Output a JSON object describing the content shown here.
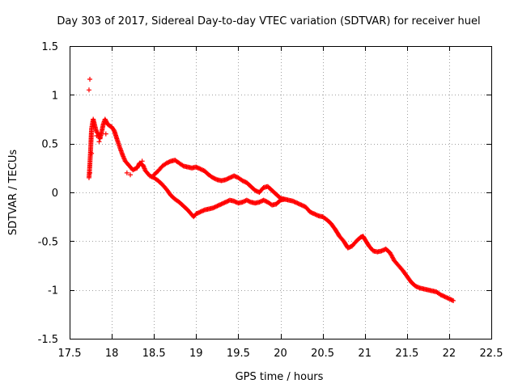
{
  "chart_data": {
    "type": "scatter",
    "title": "Day 303 of 2017, Sidereal Day-to-day VTEC variation (SDTVAR) for receiver huel",
    "xlabel": "GPS time / hours",
    "ylabel": "SDTVAR / TECUs",
    "xlim": [
      17.5,
      22.5
    ],
    "ylim": [
      -1.5,
      1.5
    ],
    "xticks": [
      17.5,
      18,
      18.5,
      19,
      19.5,
      20,
      20.5,
      21,
      21.5,
      22,
      22.5
    ],
    "xtick_labels": [
      "17.5",
      "18",
      "18.5",
      "19",
      "19.5",
      "20",
      "20.5",
      "21",
      "21.5",
      "22",
      "22.5"
    ],
    "yticks": [
      -1.5,
      -1,
      -0.5,
      0,
      0.5,
      1,
      1.5
    ],
    "ytick_labels": [
      "-1.5",
      "-1",
      "-0.5",
      "0",
      "0.5",
      "1",
      "1.5"
    ],
    "grid": true,
    "marker": "+",
    "color": "#ff0000",
    "series": [
      {
        "name": "SDTVAR",
        "polylines": [
          [
            [
              17.73,
              0.15
            ],
            [
              17.74,
              0.28
            ],
            [
              17.75,
              0.45
            ],
            [
              17.76,
              0.65
            ],
            [
              17.78,
              0.75
            ],
            [
              17.8,
              0.68
            ],
            [
              17.82,
              0.62
            ],
            [
              17.84,
              0.6
            ],
            [
              17.86,
              0.55
            ],
            [
              17.88,
              0.62
            ],
            [
              17.9,
              0.7
            ],
            [
              17.92,
              0.75
            ],
            [
              17.95,
              0.7
            ],
            [
              17.98,
              0.68
            ],
            [
              18.0,
              0.67
            ],
            [
              18.03,
              0.63
            ],
            [
              18.06,
              0.55
            ],
            [
              18.1,
              0.45
            ],
            [
              18.13,
              0.38
            ],
            [
              18.16,
              0.32
            ],
            [
              18.2,
              0.28
            ],
            [
              18.25,
              0.23
            ],
            [
              18.3,
              0.25
            ],
            [
              18.33,
              0.3
            ],
            [
              18.37,
              0.28
            ],
            [
              18.4,
              0.22
            ],
            [
              18.45,
              0.17
            ],
            [
              18.5,
              0.15
            ],
            [
              18.55,
              0.12
            ],
            [
              18.6,
              0.08
            ],
            [
              18.65,
              0.03
            ],
            [
              18.7,
              -0.03
            ],
            [
              18.75,
              -0.07
            ],
            [
              18.8,
              -0.1
            ],
            [
              18.85,
              -0.14
            ],
            [
              18.9,
              -0.18
            ],
            [
              18.95,
              -0.23
            ],
            [
              18.97,
              -0.25
            ],
            [
              19.0,
              -0.22
            ],
            [
              19.05,
              -0.2
            ],
            [
              19.1,
              -0.18
            ],
            [
              19.15,
              -0.17
            ],
            [
              19.2,
              -0.16
            ],
            [
              19.25,
              -0.14
            ],
            [
              19.3,
              -0.12
            ],
            [
              19.35,
              -0.1
            ],
            [
              19.4,
              -0.08
            ],
            [
              19.45,
              -0.09
            ],
            [
              19.5,
              -0.11
            ],
            [
              19.55,
              -0.1
            ],
            [
              19.6,
              -0.08
            ],
            [
              19.65,
              -0.1
            ],
            [
              19.7,
              -0.11
            ],
            [
              19.75,
              -0.1
            ],
            [
              19.8,
              -0.08
            ],
            [
              19.85,
              -0.1
            ],
            [
              19.9,
              -0.13
            ],
            [
              19.95,
              -0.12
            ],
            [
              20.0,
              -0.08
            ],
            [
              20.05,
              -0.07
            ],
            [
              20.1,
              -0.08
            ],
            [
              20.15,
              -0.09
            ],
            [
              20.2,
              -0.11
            ],
            [
              20.25,
              -0.13
            ],
            [
              20.3,
              -0.15
            ],
            [
              20.35,
              -0.2
            ],
            [
              20.4,
              -0.22
            ],
            [
              20.45,
              -0.24
            ],
            [
              20.5,
              -0.25
            ],
            [
              20.55,
              -0.28
            ],
            [
              20.6,
              -0.32
            ],
            [
              20.65,
              -0.38
            ],
            [
              20.7,
              -0.45
            ],
            [
              20.75,
              -0.5
            ],
            [
              20.8,
              -0.57
            ],
            [
              20.85,
              -0.55
            ],
            [
              20.9,
              -0.5
            ],
            [
              20.95,
              -0.46
            ],
            [
              20.98,
              -0.45
            ],
            [
              21.0,
              -0.48
            ],
            [
              21.05,
              -0.55
            ],
            [
              21.1,
              -0.6
            ],
            [
              21.15,
              -0.61
            ],
            [
              21.2,
              -0.6
            ],
            [
              21.25,
              -0.58
            ],
            [
              21.3,
              -0.62
            ],
            [
              21.35,
              -0.7
            ],
            [
              21.4,
              -0.75
            ],
            [
              21.45,
              -0.8
            ],
            [
              21.5,
              -0.86
            ],
            [
              21.55,
              -0.92
            ],
            [
              21.6,
              -0.96
            ],
            [
              21.65,
              -0.98
            ],
            [
              21.7,
              -0.99
            ],
            [
              21.75,
              -1.0
            ],
            [
              21.8,
              -1.01
            ],
            [
              21.85,
              -1.02
            ],
            [
              21.9,
              -1.05
            ],
            [
              21.95,
              -1.07
            ],
            [
              22.0,
              -1.09
            ],
            [
              22.05,
              -1.11
            ]
          ],
          [
            [
              18.5,
              0.18
            ],
            [
              18.55,
              0.22
            ],
            [
              18.6,
              0.27
            ],
            [
              18.65,
              0.3
            ],
            [
              18.7,
              0.32
            ],
            [
              18.75,
              0.33
            ],
            [
              18.8,
              0.3
            ],
            [
              18.85,
              0.27
            ],
            [
              18.9,
              0.26
            ],
            [
              18.95,
              0.25
            ],
            [
              19.0,
              0.26
            ],
            [
              19.05,
              0.24
            ],
            [
              19.1,
              0.22
            ],
            [
              19.15,
              0.18
            ],
            [
              19.2,
              0.15
            ],
            [
              19.25,
              0.13
            ],
            [
              19.3,
              0.12
            ],
            [
              19.35,
              0.13
            ],
            [
              19.4,
              0.15
            ],
            [
              19.45,
              0.17
            ],
            [
              19.5,
              0.15
            ],
            [
              19.55,
              0.12
            ],
            [
              19.6,
              0.1
            ],
            [
              19.65,
              0.06
            ],
            [
              19.7,
              0.02
            ],
            [
              19.75,
              0.0
            ],
            [
              19.8,
              0.05
            ],
            [
              19.85,
              0.06
            ],
            [
              19.9,
              0.02
            ],
            [
              19.95,
              -0.02
            ],
            [
              20.0,
              -0.06
            ],
            [
              20.05,
              -0.07
            ]
          ]
        ],
        "extra_points": [
          [
            17.74,
            1.16
          ],
          [
            17.73,
            1.05
          ],
          [
            17.74,
            0.2
          ],
          [
            17.76,
            0.4
          ],
          [
            17.82,
            0.58
          ],
          [
            17.85,
            0.52
          ],
          [
            17.93,
            0.6
          ],
          [
            18.18,
            0.2
          ],
          [
            18.22,
            0.18
          ],
          [
            18.36,
            0.32
          ]
        ]
      }
    ]
  }
}
